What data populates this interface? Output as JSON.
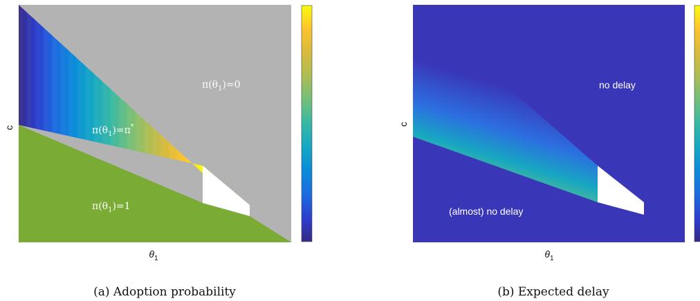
{
  "chart_data": [
    {
      "type": "heatmap",
      "panel": "a",
      "xlabel": "θ1",
      "ylabel": "c",
      "caption": "(a) Adoption probability",
      "regions": [
        {
          "label": "π(θ1)=0",
          "label_main": "π(θ",
          "label_sub": "1",
          "label_tail": ")=0",
          "color": "#b3b3b3"
        },
        {
          "label": "π(θ1)=π*",
          "label_main": "π(θ",
          "label_sub": "1",
          "label_tail": ")=π",
          "label_sup": "*",
          "colormap": "parula"
        },
        {
          "label": "π(θ1)=1",
          "label_main": "π(θ",
          "label_sub": "1",
          "label_tail": ")=1",
          "color": "#7aab34"
        },
        {
          "label": "",
          "color": "#ffffff"
        }
      ],
      "colorbar": true
    },
    {
      "type": "heatmap",
      "panel": "b",
      "xlabel": "θ1",
      "ylabel": "c",
      "caption": "(b) Expected delay",
      "regions": [
        {
          "label": "no delay",
          "color": "#3a36b8"
        },
        {
          "label": "(almost) no delay",
          "color": "#3a36b8"
        },
        {
          "label": "",
          "colormap": "parula"
        },
        {
          "label": "",
          "color": "#ffffff"
        }
      ],
      "colorbar": true
    }
  ],
  "colors": {
    "gray": "#b3b3b3",
    "green": "#7aab34",
    "deep_blue": "#3a36b8",
    "white": "#ffffff",
    "parula": [
      "#352a87",
      "#2c3fcf",
      "#1b6ce0",
      "#0a8bd9",
      "#14a7c4",
      "#37b8a5",
      "#72bf7a",
      "#abbe55",
      "#d8ba3c",
      "#fcc42c",
      "#f9fb0e"
    ]
  }
}
